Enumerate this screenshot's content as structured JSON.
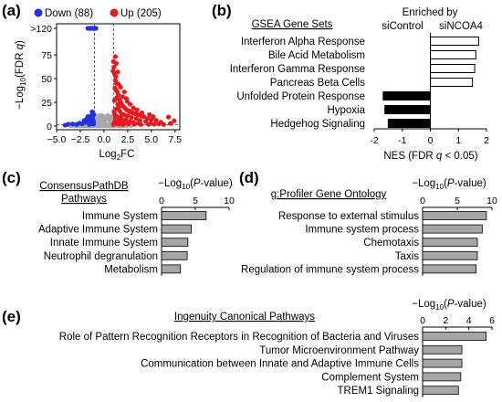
{
  "panel_labels": [
    "(a)",
    "(b)",
    "(c)",
    "(d)",
    "(e)"
  ],
  "chart_data": [
    {
      "panel": "(a)",
      "type": "scatter",
      "xlabel_main": "Log",
      "xlabel_sub": "2",
      "xlabel_tail": "FC",
      "ylabel_lead": "−Log",
      "ylabel_sub": "10",
      "ylabel_tail": "(FDR ",
      "ylabel_q": "q",
      "ylabel_close": ")",
      "xlim": [
        -5.0,
        8.0
      ],
      "ylim": [
        0,
        125
      ],
      "x_ticks": [
        -5.0,
        -2.5,
        0.0,
        2.5,
        5.0,
        7.5
      ],
      "x_tick_labels": [
        "−5.0",
        "−2.5",
        "0.0",
        "2.5",
        "5.0",
        "7.5"
      ],
      "y_ticks": [
        0,
        25,
        50,
        75,
        120
      ],
      "y_tick_labels": [
        "0",
        "25",
        "50",
        "75",
        ">120"
      ],
      "thresholds": {
        "x": [
          -1,
          1
        ],
        "y": 1.3
      },
      "legend": [
        {
          "name": "Down",
          "count": "(88)",
          "color": "#2233dd"
        },
        {
          "name": "Up",
          "count": "(205)",
          "color": "#e8191c"
        }
      ],
      "colors": {
        "down": "#2233dd",
        "up": "#e8191c",
        "ns": "#a8a8a8"
      },
      "down_points": [
        [
          -1.2,
          120
        ],
        [
          -1.05,
          120
        ],
        [
          -0.95,
          120
        ],
        [
          -1.35,
          120
        ],
        [
          -1.5,
          120
        ],
        [
          -0.85,
          120
        ],
        [
          -1.15,
          120
        ],
        [
          -1.6,
          120
        ],
        [
          -1.7,
          120
        ],
        [
          -1.25,
          120
        ],
        [
          -4.1,
          0.9
        ],
        [
          -3.8,
          1.8
        ],
        [
          -3.3,
          2.2
        ],
        [
          -2.9,
          1.5
        ],
        [
          -2.6,
          3.1
        ],
        [
          -2.3,
          2.4
        ],
        [
          -2.0,
          4.0
        ],
        [
          -1.8,
          5.5
        ],
        [
          -1.6,
          3.2
        ],
        [
          -1.4,
          6.8
        ],
        [
          -1.3,
          2.5
        ],
        [
          -1.2,
          9.0
        ],
        [
          -1.1,
          4.2
        ],
        [
          -1.05,
          12.0
        ],
        [
          -1.5,
          8.0
        ],
        [
          -1.9,
          7.0
        ],
        [
          -1.25,
          15.0
        ],
        [
          -1.15,
          6.0
        ],
        [
          -2.1,
          5.8
        ],
        [
          -1.7,
          10.0
        ],
        [
          -1.35,
          11.0
        ],
        [
          -1.1,
          2.1
        ],
        [
          -1.45,
          3.8
        ],
        [
          -1.55,
          1.6
        ]
      ],
      "up_points": [
        [
          1.05,
          62
        ],
        [
          1.1,
          55
        ],
        [
          1.2,
          48
        ],
        [
          1.3,
          45
        ],
        [
          1.15,
          40
        ],
        [
          1.25,
          38
        ],
        [
          1.4,
          36
        ],
        [
          1.5,
          33
        ],
        [
          1.35,
          30
        ],
        [
          1.6,
          28
        ],
        [
          1.1,
          27
        ],
        [
          1.7,
          26
        ],
        [
          1.8,
          24
        ],
        [
          1.45,
          23
        ],
        [
          1.9,
          22
        ],
        [
          2.0,
          21
        ],
        [
          1.55,
          20
        ],
        [
          2.2,
          19
        ],
        [
          1.25,
          18
        ],
        [
          2.4,
          17
        ],
        [
          2.6,
          16
        ],
        [
          1.65,
          16
        ],
        [
          2.8,
          15
        ],
        [
          1.05,
          15
        ],
        [
          3.0,
          14
        ],
        [
          3.3,
          13
        ],
        [
          1.85,
          13
        ],
        [
          3.6,
          12
        ],
        [
          2.1,
          12
        ],
        [
          1.15,
          12
        ],
        [
          3.9,
          11
        ],
        [
          2.5,
          11
        ],
        [
          1.4,
          10
        ],
        [
          4.2,
          10
        ],
        [
          2.9,
          9
        ],
        [
          1.75,
          9
        ],
        [
          4.6,
          8
        ],
        [
          3.4,
          8
        ],
        [
          1.2,
          8
        ],
        [
          5.0,
          7
        ],
        [
          2.3,
          7
        ],
        [
          1.95,
          6
        ],
        [
          3.8,
          6
        ],
        [
          5.5,
          6
        ],
        [
          1.5,
          5
        ],
        [
          2.7,
          5
        ],
        [
          4.4,
          5
        ],
        [
          1.1,
          4
        ],
        [
          3.1,
          4
        ],
        [
          6.0,
          4
        ],
        [
          1.8,
          3.5
        ],
        [
          2.2,
          3
        ],
        [
          3.6,
          3
        ],
        [
          4.9,
          3
        ],
        [
          1.3,
          2.6
        ],
        [
          2.6,
          2.4
        ],
        [
          5.8,
          2.2
        ],
        [
          1.6,
          2
        ],
        [
          3.2,
          2
        ],
        [
          7.0,
          2.8
        ],
        [
          6.8,
          9.5
        ],
        [
          7.4,
          5.5
        ],
        [
          4.7,
          1.8
        ],
        [
          2.0,
          1.6
        ],
        [
          3.9,
          1.6
        ],
        [
          1.0,
          1.7
        ],
        [
          5.3,
          1.9
        ],
        [
          6.3,
          1.7
        ],
        [
          2.45,
          26
        ],
        [
          3.1,
          19
        ],
        [
          1.55,
          44
        ],
        [
          1.95,
          31
        ],
        [
          2.15,
          36
        ],
        [
          1.25,
          52
        ],
        [
          0.95,
          58
        ],
        [
          1.0,
          68
        ],
        [
          1.3,
          66
        ],
        [
          1.2,
          73
        ],
        [
          1.45,
          57
        ],
        [
          1.75,
          41
        ],
        [
          2.35,
          29
        ],
        [
          2.75,
          23
        ],
        [
          3.5,
          17
        ],
        [
          4.0,
          14
        ],
        [
          4.8,
          12
        ],
        [
          5.2,
          10
        ]
      ],
      "ns_band": {
        "x_min": -3.2,
        "x_max": 2.4,
        "y_max": 14
      }
    },
    {
      "panel": "(b)",
      "type": "bar",
      "orientation": "horizontal",
      "title": "GSEA Gene Sets",
      "header": "Enriched by",
      "group_left": "siControl",
      "group_right": "siNCOA4",
      "xlabel_main": "NES (FDR ",
      "xlabel_q": "q",
      "xlabel_tail": " < 0.05)",
      "categories": [
        "Interferon Alpha Response",
        "Bile Acid Metabolism",
        "Interferon Gamma Response",
        "Pancreas Beta Cells",
        "Unfolded Protein Response",
        "Hypoxia",
        "Hedgehog Signaling"
      ],
      "values": [
        1.72,
        1.62,
        1.58,
        1.5,
        -1.68,
        -1.62,
        -1.5
      ],
      "xlim": [
        -2,
        2
      ],
      "x_ticks": [
        -2,
        -1,
        0,
        1,
        2
      ],
      "x_tick_labels": [
        "-2",
        "-1",
        "0",
        "1",
        "2"
      ],
      "colors": {
        "positive": "#ffffff",
        "negative": "#000000"
      }
    },
    {
      "panel": "(c)",
      "type": "bar",
      "orientation": "horizontal",
      "title_line1": "ConsensusPathDB",
      "title_line2": "Pathways",
      "xlabel_lead": "−Log",
      "xlabel_sub": "10",
      "xlabel_open": "(",
      "xlabel_p": "P",
      "xlabel_tail": "-value)",
      "categories": [
        "Immune System",
        "Adaptive Immune System",
        "Innate Immune System",
        "Neutrophil degranulation",
        "Metabolism"
      ],
      "values": [
        6.6,
        4.4,
        3.9,
        3.8,
        2.8
      ],
      "xlim": [
        0,
        10
      ],
      "x_ticks": [
        0,
        5,
        10
      ],
      "x_tick_labels": [
        "0",
        "5",
        "10"
      ],
      "bar_color": "#a6a6a6"
    },
    {
      "panel": "(d)",
      "type": "bar",
      "orientation": "horizontal",
      "title": "g:Profiler Gene Ontology",
      "xlabel_lead": "−Log",
      "xlabel_sub": "10",
      "xlabel_open": "(",
      "xlabel_p": "P",
      "xlabel_tail": "-value)",
      "categories": [
        "Response to external stimulus",
        "Immune system process",
        "Chemotaxis",
        "Taxis",
        "Regulation of immune system process"
      ],
      "values": [
        9.2,
        8.6,
        7.9,
        7.9,
        7.7
      ],
      "xlim": [
        0,
        10
      ],
      "x_ticks": [
        0,
        5,
        10
      ],
      "x_tick_labels": [
        "0",
        "5",
        "10"
      ],
      "bar_color": "#a6a6a6"
    },
    {
      "panel": "(e)",
      "type": "bar",
      "orientation": "horizontal",
      "title": "Ingenuity Canonical Pathways",
      "xlabel_lead": "−Log",
      "xlabel_sub": "10",
      "xlabel_open": "(",
      "xlabel_p": "P",
      "xlabel_tail": "-value)",
      "categories": [
        "Role of Pattern Recognition Receptors in Recognition of Bacteria and Viruses",
        "Tumor Microenvironment Pathway",
        "Communication between Innate and Adaptive Immune Cells",
        "Complement System",
        "TREM1 Signaling"
      ],
      "values": [
        5.5,
        3.4,
        3.4,
        3.3,
        3.1
      ],
      "xlim": [
        0,
        6
      ],
      "x_ticks": [
        0,
        2,
        4,
        6
      ],
      "x_tick_labels": [
        "0",
        "2",
        "4",
        "6"
      ],
      "bar_color": "#a6a6a6"
    }
  ]
}
